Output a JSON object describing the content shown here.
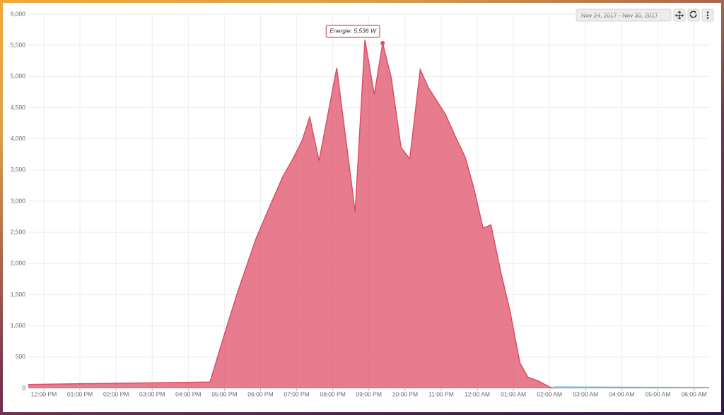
{
  "chart_data": {
    "type": "area",
    "series": [
      {
        "name": "Energie",
        "color": "#dc4a63",
        "x": [
          11.57,
          16.6,
          17.05,
          17.37,
          17.88,
          18.19,
          18.62,
          18.87,
          19.15,
          19.36,
          19.62,
          20.11,
          20.62,
          20.89,
          21.15,
          21.38,
          21.62,
          21.89,
          22.13,
          22.42,
          22.65,
          23.12,
          23.4,
          23.67,
          23.91,
          24.16,
          24.38,
          24.65,
          24.91,
          25.18,
          25.4,
          25.71,
          26.0,
          26.12
        ],
        "values": [
          60,
          100,
          960,
          1550,
          2410,
          2830,
          3400,
          3650,
          3970,
          4350,
          3650,
          5140,
          2830,
          5590,
          4710,
          5536,
          4980,
          3860,
          3680,
          5110,
          4820,
          4390,
          4030,
          3700,
          3200,
          2570,
          2620,
          1870,
          1230,
          410,
          180,
          110,
          20,
          0
        ]
      },
      {
        "color": "#5fb3e0",
        "x": [
          26.12,
          30.42
        ],
        "values": [
          20,
          10
        ]
      }
    ],
    "xlim": [
      11.57,
      30.42
    ],
    "xticks": [
      {
        "value": 12,
        "label": "12:00 PM"
      },
      {
        "value": 13,
        "label": "01:00 PM"
      },
      {
        "value": 14,
        "label": "02:00 PM"
      },
      {
        "value": 15,
        "label": "03:00 PM"
      },
      {
        "value": 16,
        "label": "04:00 PM"
      },
      {
        "value": 17,
        "label": "05:00 PM"
      },
      {
        "value": 18,
        "label": "06:00 PM"
      },
      {
        "value": 19,
        "label": "07:00 PM"
      },
      {
        "value": 20,
        "label": "08:00 PM"
      },
      {
        "value": 21,
        "label": "09:00 PM"
      },
      {
        "value": 22,
        "label": "10:00 PM"
      },
      {
        "value": 23,
        "label": "11:00 PM"
      },
      {
        "value": 24,
        "label": "12:00 AM"
      },
      {
        "value": 25,
        "label": "01:00 AM"
      },
      {
        "value": 26,
        "label": "02:00 AM"
      },
      {
        "value": 27,
        "label": "03:00 AM"
      },
      {
        "value": 28,
        "label": "04:00 AM"
      },
      {
        "value": 29,
        "label": "05:00 AM"
      },
      {
        "value": 30,
        "label": "06:00 AM"
      }
    ],
    "ylim": [
      0,
      6000
    ],
    "yticks": [
      0,
      500,
      {
        "value": 1000,
        "label": "1,000"
      },
      {
        "value": 1500,
        "label": "1,500"
      },
      {
        "value": 2000,
        "label": "2,000"
      },
      {
        "value": 2500,
        "label": "2,500"
      },
      {
        "value": 3000,
        "label": "3,000"
      },
      {
        "value": 3500,
        "label": "3,500"
      },
      {
        "value": 4000,
        "label": "4,000"
      },
      {
        "value": 4500,
        "label": "4,500"
      },
      {
        "value": 5000,
        "label": "5,000"
      },
      {
        "value": 5500,
        "label": "5,500"
      },
      {
        "value": 6000,
        "label": "6,000"
      }
    ],
    "grid": true,
    "tooltip": {
      "text": "Energie: 5,536 W",
      "series": 0,
      "point": 15
    }
  },
  "controls": {
    "date_range": "Nov 24, 2017 - Nov 30, 2017"
  }
}
